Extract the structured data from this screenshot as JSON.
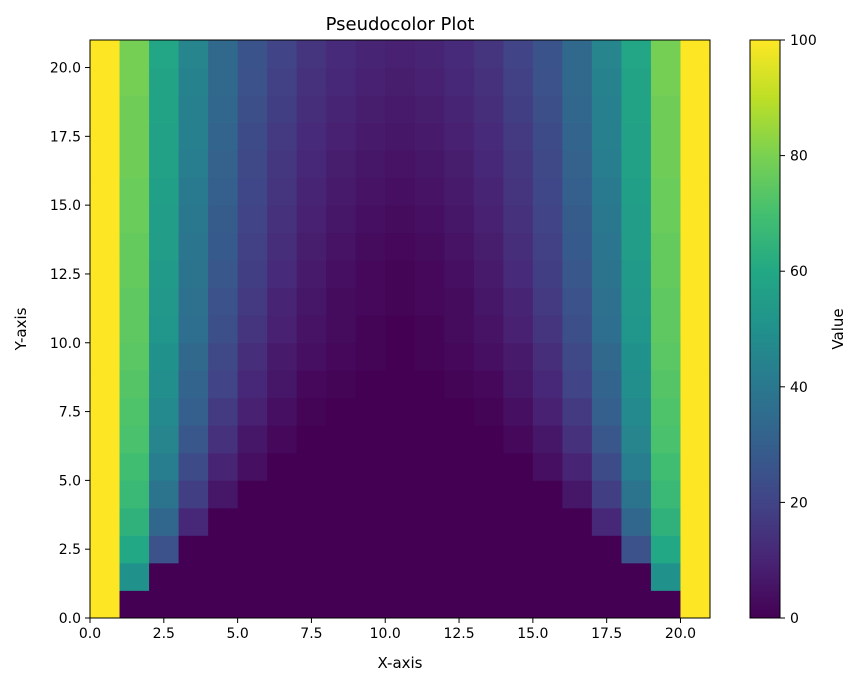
{
  "chart_data": {
    "type": "heatmap",
    "title": "Pseudocolor Plot",
    "xlabel": "X-axis",
    "ylabel": "Y-axis",
    "xlim": [
      0,
      21
    ],
    "ylim": [
      0,
      21
    ],
    "x_edges": [
      0,
      1,
      2,
      3,
      4,
      5,
      6,
      7,
      8,
      9,
      10,
      11,
      12,
      13,
      14,
      15,
      16,
      17,
      18,
      19,
      20,
      21
    ],
    "y_edges": [
      0,
      1,
      2,
      3,
      4,
      5,
      6,
      7,
      8,
      9,
      10,
      11,
      12,
      13,
      14,
      15,
      16,
      17,
      18,
      19,
      20,
      21
    ],
    "x_ticks": [
      0,
      2.5,
      5,
      7.5,
      10,
      12.5,
      15,
      17.5,
      20
    ],
    "x_tick_labels": [
      "0.0",
      "2.5",
      "5.0",
      "7.5",
      "10.0",
      "12.5",
      "15.0",
      "17.5",
      "20.0"
    ],
    "y_ticks": [
      0,
      2.5,
      5,
      7.5,
      10,
      12.5,
      15,
      17.5,
      20
    ],
    "y_tick_labels": [
      "0.0",
      "2.5",
      "5.0",
      "7.5",
      "10.0",
      "12.5",
      "15.0",
      "17.5",
      "20.0"
    ],
    "colormap": "viridis",
    "vmin": 0,
    "vmax": 100,
    "colorbar": {
      "label": "Value",
      "ticks": [
        0,
        20,
        40,
        60,
        80,
        100
      ],
      "tick_labels": [
        "0",
        "20",
        "40",
        "60",
        "80",
        "100"
      ]
    },
    "grid": false,
    "values_note_rows_from_bottom": true,
    "values": [
      [
        100,
        0,
        0,
        0,
        0,
        0,
        0,
        0,
        0,
        0,
        0,
        0,
        0,
        0,
        0,
        0,
        0,
        0,
        0,
        0,
        100
      ],
      [
        100,
        50,
        0,
        0,
        0,
        0,
        0,
        0,
        0,
        0,
        0,
        0,
        0,
        0,
        0,
        0,
        0,
        0,
        0,
        50,
        100
      ],
      [
        100,
        60,
        25,
        0,
        0,
        0,
        0,
        0,
        0,
        0,
        0,
        0,
        0,
        0,
        0,
        0,
        0,
        0,
        25,
        60,
        100
      ],
      [
        100,
        64,
        33,
        11,
        0,
        0,
        0,
        0,
        0,
        0,
        0,
        0,
        0,
        0,
        0,
        0,
        0,
        11,
        33,
        64,
        100
      ],
      [
        100,
        67,
        38,
        18,
        6,
        0,
        0,
        0,
        0,
        0,
        0,
        0,
        0,
        0,
        0,
        0,
        6,
        18,
        38,
        67,
        100
      ],
      [
        100,
        69,
        42,
        23,
        10,
        4,
        0,
        0,
        0,
        0,
        0,
        0,
        0,
        0,
        0,
        4,
        10,
        23,
        42,
        69,
        100
      ],
      [
        100,
        71,
        45,
        27,
        14,
        6,
        2,
        0,
        0,
        0,
        0,
        0,
        0,
        0,
        2,
        6,
        14,
        27,
        45,
        71,
        100
      ],
      [
        100,
        72,
        47,
        30,
        17,
        9,
        4,
        1,
        0,
        0,
        0,
        0,
        0,
        1,
        4,
        9,
        17,
        30,
        47,
        72,
        100
      ],
      [
        100,
        73,
        49,
        32,
        20,
        11,
        6,
        2,
        1,
        0,
        0,
        0,
        1,
        2,
        6,
        11,
        20,
        32,
        49,
        73,
        100
      ],
      [
        100,
        74,
        50,
        34,
        22,
        13,
        7,
        4,
        2,
        1,
        0,
        1,
        2,
        4,
        7,
        13,
        22,
        34,
        50,
        74,
        100
      ],
      [
        100,
        75,
        52,
        36,
        24,
        15,
        9,
        5,
        3,
        1,
        0,
        1,
        3,
        5,
        9,
        15,
        24,
        36,
        52,
        75,
        100
      ],
      [
        100,
        75,
        53,
        37,
        25,
        17,
        10,
        6,
        3,
        2,
        1,
        2,
        3,
        6,
        10,
        17,
        25,
        37,
        53,
        75,
        100
      ],
      [
        100,
        76,
        54,
        38,
        27,
        18,
        12,
        7,
        4,
        2,
        1,
        2,
        4,
        7,
        12,
        18,
        27,
        38,
        54,
        76,
        100
      ],
      [
        100,
        76,
        55,
        39,
        28,
        19,
        13,
        8,
        5,
        3,
        2,
        3,
        5,
        8,
        13,
        19,
        28,
        39,
        55,
        76,
        100
      ],
      [
        100,
        77,
        55,
        40,
        29,
        20,
        14,
        9,
        6,
        4,
        3,
        4,
        6,
        9,
        14,
        20,
        29,
        40,
        55,
        77,
        100
      ],
      [
        100,
        77,
        56,
        41,
        30,
        21,
        15,
        10,
        7,
        5,
        4,
        5,
        7,
        10,
        15,
        21,
        30,
        41,
        56,
        77,
        100
      ],
      [
        100,
        78,
        57,
        42,
        31,
        22,
        16,
        11,
        8,
        6,
        5,
        6,
        8,
        11,
        16,
        22,
        31,
        42,
        57,
        78,
        100
      ],
      [
        100,
        78,
        57,
        43,
        32,
        23,
        17,
        12,
        9,
        7,
        6,
        7,
        9,
        12,
        17,
        23,
        32,
        43,
        57,
        78,
        100
      ],
      [
        100,
        78,
        58,
        43,
        33,
        24,
        18,
        13,
        10,
        8,
        7,
        8,
        10,
        13,
        18,
        24,
        33,
        43,
        58,
        78,
        100
      ],
      [
        100,
        79,
        58,
        44,
        34,
        25,
        19,
        14,
        11,
        9,
        8,
        9,
        11,
        14,
        19,
        25,
        34,
        44,
        58,
        79,
        100
      ],
      [
        100,
        79,
        59,
        45,
        34,
        26,
        20,
        15,
        12,
        10,
        9,
        10,
        12,
        15,
        20,
        26,
        34,
        45,
        59,
        79,
        100
      ]
    ]
  }
}
